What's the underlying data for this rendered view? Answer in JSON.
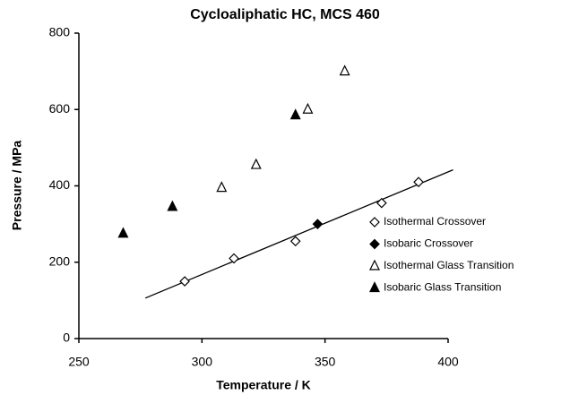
{
  "chart_data": {
    "type": "scatter",
    "title": "Cycloaliphatic HC, MCS 460",
    "x_label": "Temperature / K",
    "y_label": "Pressure / MPa",
    "xlim": [
      250,
      400
    ],
    "xticks": [
      250,
      300,
      350,
      400
    ],
    "ylim": [
      0,
      800
    ],
    "yticks": [
      0,
      200,
      400,
      600,
      800
    ],
    "grid": false,
    "legend": "right",
    "series": [
      {
        "name": "Isothermal Crossover",
        "color": "#000000",
        "marker": "diamond",
        "filled": false,
        "x": [
          293,
          313,
          338,
          373,
          388
        ],
        "values": [
          150,
          210,
          255,
          355,
          410
        ]
      },
      {
        "name": "Isobaric Crossover",
        "color": "#000000",
        "marker": "diamond",
        "filled": true,
        "x": [
          347
        ],
        "values": [
          300
        ]
      },
      {
        "name": "Isothermal Glass Transition",
        "color": "#000000",
        "marker": "triangle",
        "filled": false,
        "x": [
          308,
          322,
          343,
          358
        ],
        "values": [
          395,
          455,
          600,
          700
        ]
      },
      {
        "name": "Isobaric Glass Transition",
        "color": "#000000",
        "marker": "triangle",
        "filled": true,
        "x": [
          268,
          288,
          338
        ],
        "values": [
          275,
          345,
          585
        ]
      }
    ],
    "fit_line": {
      "color": "#000000",
      "x": [
        277,
        402
      ],
      "values": [
        106,
        442
      ]
    }
  }
}
